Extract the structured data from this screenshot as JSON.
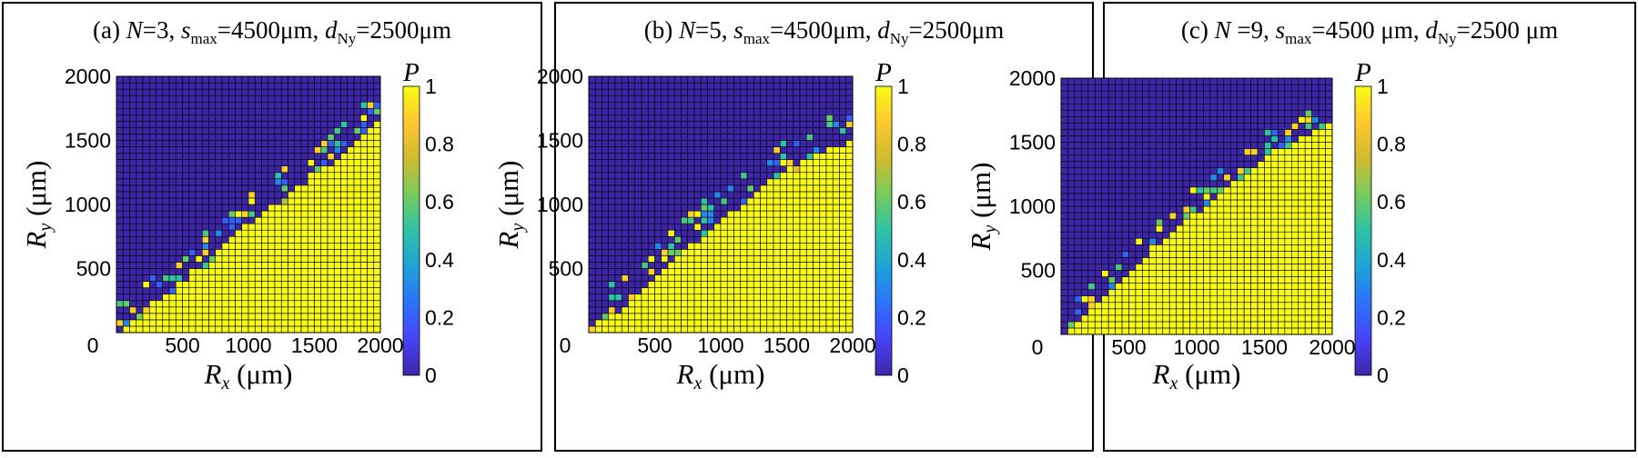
{
  "chart_data": [
    {
      "type": "heatmap",
      "panel": "(a)",
      "title": {
        "panel": "(a) ",
        "n_sym": "N",
        "n_val": "=3, ",
        "s_sym": "s",
        "s_sub": "max",
        "s_val": "=4500μm, ",
        "d_sym": "d",
        "d_sub": "Ny",
        "d_val": "=2500μm"
      },
      "xlabel": {
        "sym": "R",
        "sub": "x",
        "unit": " (μm)"
      },
      "ylabel": {
        "sym": "R",
        "sub": "y",
        "unit": " (μm)"
      },
      "colorbar_label": "P",
      "xlim": [
        0,
        2000
      ],
      "ylim": [
        0,
        2000
      ],
      "xticks": [
        "0",
        "500",
        "1000",
        "1500",
        "2000"
      ],
      "yticks": [
        "500",
        "1000",
        "1500",
        "2000"
      ],
      "colorbar_ticks": [
        "0",
        "0.2",
        "0.4",
        "0.6",
        "0.8",
        "1"
      ],
      "grid_cells": 40,
      "boundary": [
        [
          0,
          0
        ],
        [
          200,
          150
        ],
        [
          400,
          300
        ],
        [
          600,
          480
        ],
        [
          800,
          680
        ],
        [
          1000,
          850
        ],
        [
          1200,
          1000
        ],
        [
          1400,
          1150
        ],
        [
          1600,
          1300
        ],
        [
          1800,
          1500
        ],
        [
          2000,
          1650
        ]
      ],
      "P_region_above": 0,
      "P_region_below": 1,
      "transition_width": 230,
      "scatter_density": 0.32
    },
    {
      "type": "heatmap",
      "panel": "(b)",
      "title": {
        "panel": "(b) ",
        "n_sym": "N",
        "n_val": "=5, ",
        "s_sym": "s",
        "s_sub": "max",
        "s_val": "=4500μm, ",
        "d_sym": "d",
        "d_sub": "Ny",
        "d_val": "=2500μm"
      },
      "xlabel": {
        "sym": "R",
        "sub": "x",
        "unit": " (μm)"
      },
      "ylabel": {
        "sym": "R",
        "sub": "y",
        "unit": " (μm)"
      },
      "colorbar_label": "P",
      "xlim": [
        0,
        2000
      ],
      "ylim": [
        0,
        2000
      ],
      "xticks": [
        "0",
        "500",
        "1000",
        "1500",
        "2000"
      ],
      "yticks": [
        "500",
        "1000",
        "1500",
        "2000"
      ],
      "colorbar_ticks": [
        "0",
        "0.2",
        "0.4",
        "0.6",
        "0.8",
        "1"
      ],
      "grid_cells": 40,
      "boundary": [
        [
          0,
          0
        ],
        [
          200,
          150
        ],
        [
          400,
          330
        ],
        [
          600,
          520
        ],
        [
          800,
          700
        ],
        [
          1000,
          880
        ],
        [
          1200,
          1020
        ],
        [
          1400,
          1200
        ],
        [
          1600,
          1330
        ],
        [
          1800,
          1420
        ],
        [
          2000,
          1500
        ]
      ],
      "P_region_above": 0,
      "P_region_below": 1,
      "transition_width": 260,
      "scatter_density": 0.3
    },
    {
      "type": "heatmap",
      "panel": "(c)",
      "title": {
        "panel": "(c) ",
        "n_sym": "N",
        "n_val": " =9, ",
        "s_sym": "s",
        "s_sub": "max",
        "s_val": "=4500 μm, ",
        "d_sym": "d",
        "d_sub": "Ny",
        "d_val": "=2500 μm"
      },
      "xlabel": {
        "sym": "R",
        "sub": "x",
        "unit": " (μm)"
      },
      "ylabel": {
        "sym": "R",
        "sub": "y",
        "unit": " (μm)"
      },
      "colorbar_label": "P",
      "xlim": [
        0,
        2000
      ],
      "ylim": [
        0,
        2000
      ],
      "xticks": [
        "0",
        "500",
        "1000",
        "1500",
        "2000"
      ],
      "yticks": [
        "500",
        "1000",
        "1500",
        "2000"
      ],
      "colorbar_ticks": [
        "0",
        "0.2",
        "0.4",
        "0.6",
        "0.8",
        "1"
      ],
      "grid_cells": 40,
      "boundary": [
        [
          0,
          0
        ],
        [
          200,
          170
        ],
        [
          400,
          370
        ],
        [
          600,
          570
        ],
        [
          800,
          770
        ],
        [
          1000,
          950
        ],
        [
          1200,
          1120
        ],
        [
          1400,
          1300
        ],
        [
          1600,
          1450
        ],
        [
          1800,
          1550
        ],
        [
          2000,
          1650
        ]
      ],
      "P_region_above": 0,
      "P_region_below": 1,
      "transition_width": 200,
      "scatter_density": 0.28
    }
  ],
  "colormap": [
    "#3e26a8",
    "#4743f7",
    "#2c72fb",
    "#1ea3d6",
    "#2ec2a6",
    "#75cc5d",
    "#d1bb2f",
    "#fdc82f",
    "#f9fb15"
  ],
  "grid_line_color": "#000000"
}
